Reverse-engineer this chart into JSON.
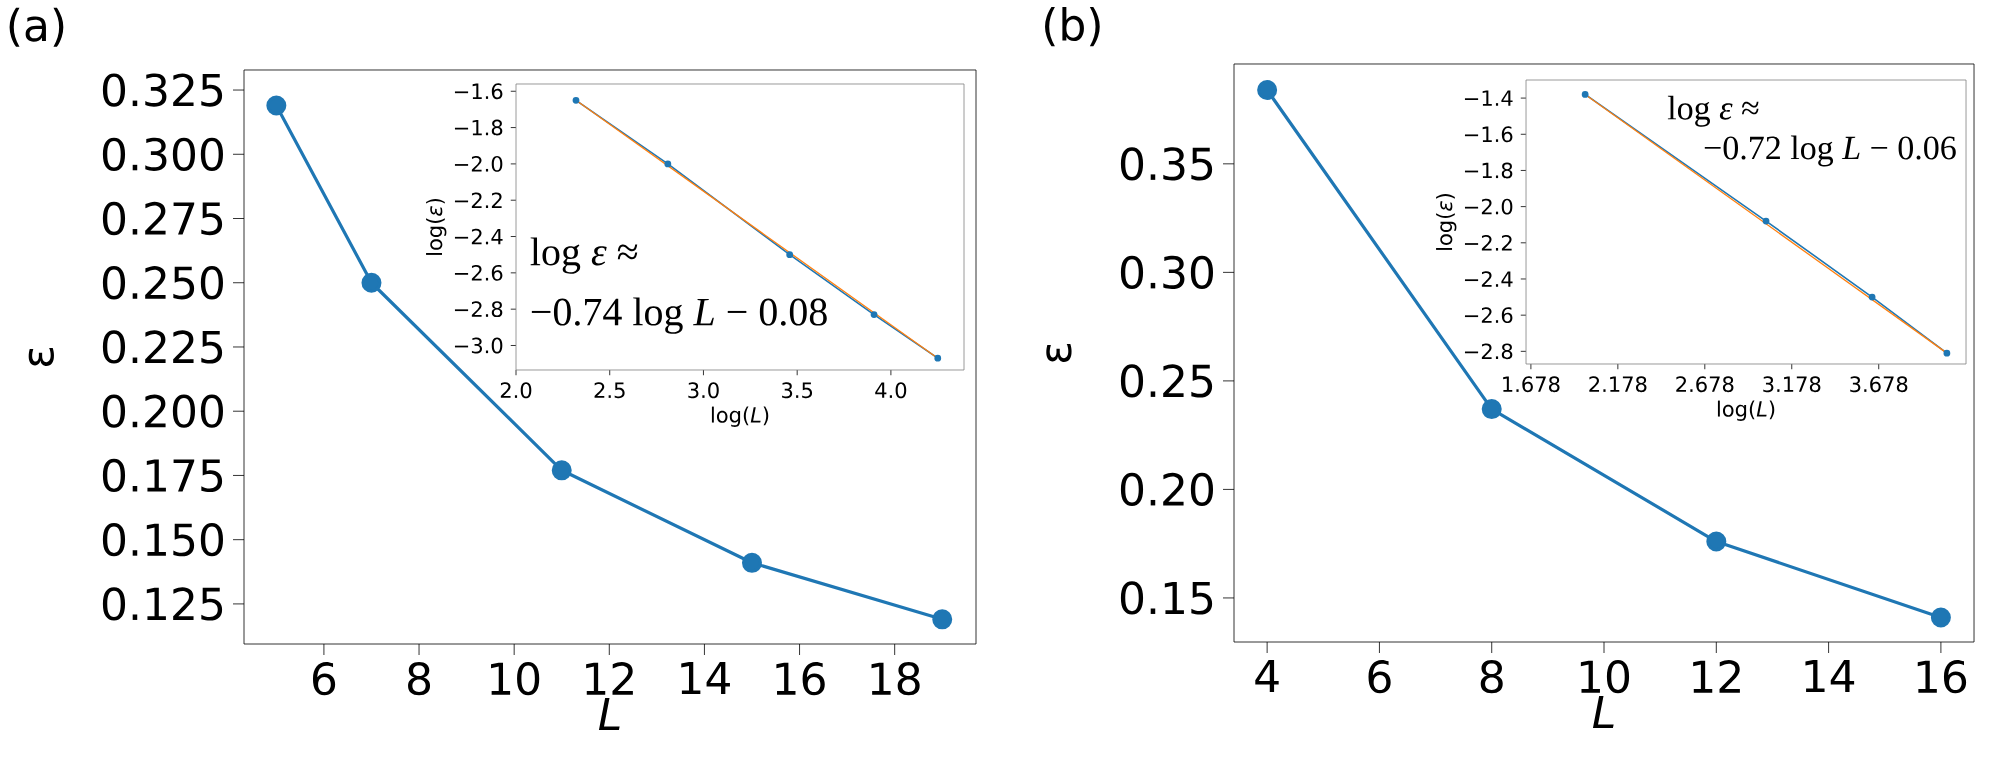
{
  "chart_data": [
    {
      "type": "line",
      "title": "(a)",
      "xlabel": "L",
      "ylabel": "ε",
      "x": [
        5,
        7,
        11,
        15,
        19
      ],
      "xlim": [
        4.32,
        19.71
      ],
      "ylim": [
        0.1094,
        0.3328
      ],
      "xticks": [
        6,
        8,
        10,
        12,
        14,
        16,
        18
      ],
      "yticks": [
        0.125,
        {
          "value": 0.15,
          "label": "0.150"
        },
        0.175,
        {
          "value": 0.2,
          "label": "0.200"
        },
        0.225,
        {
          "value": 0.25,
          "label": "0.250"
        },
        0.275,
        {
          "value": 0.3,
          "label": "0.300"
        },
        0.325
      ],
      "marker": "circle",
      "series": [
        {
          "color": "#1f77b4",
          "values": [
            0.319,
            0.25,
            0.177,
            0.141,
            0.119
          ]
        }
      ]
    },
    {
      "type": "line",
      "xlabel": "log(*L*)",
      "ylabel": "log(*ε*)",
      "xlim": [
        2.0,
        4.39
      ],
      "ylim": [
        -3.135,
        -1.56
      ],
      "xticks": [
        {
          "value": 2,
          "label": "2.0"
        },
        2.5,
        {
          "value": 3,
          "label": "3.0"
        },
        3.5,
        {
          "value": 4,
          "label": "4.0"
        }
      ],
      "yticks": [
        {
          "value": -3.0,
          "label": "−3.0"
        },
        {
          "value": -2.8,
          "label": "−2.8"
        },
        {
          "value": -2.6,
          "label": "−2.6"
        },
        {
          "value": -2.4,
          "label": "−2.4"
        },
        {
          "value": -2.2,
          "label": "−2.2"
        },
        {
          "value": -2.0,
          "label": "−2.0"
        },
        {
          "value": -1.8,
          "label": "−1.8"
        },
        {
          "value": -1.6,
          "label": "−1.6"
        }
      ],
      "marker": "circle",
      "annotations": [
        "log *ε* ≈",
        "−0.74 log *L* − 0.08"
      ],
      "series": [
        {
          "color": "#1f77b4",
          "x": [
            2.32,
            2.81,
            3.46,
            3.91,
            4.25
          ],
          "values": [
            -1.65,
            -2.0,
            -2.5,
            -2.83,
            -3.07
          ]
        },
        {
          "color": "#ff7f0e",
          "x": [
            2.32,
            4.25
          ],
          "values": [
            -1.65,
            -3.07
          ],
          "marker": "none"
        }
      ]
    },
    {
      "type": "line",
      "title": "(b)",
      "xlabel": "L",
      "ylabel": "ε",
      "x": [
        4,
        8,
        12,
        16
      ],
      "xlim": [
        3.41,
        16.59
      ],
      "ylim": [
        0.1297,
        0.396
      ],
      "xticks": [
        4,
        6,
        8,
        10,
        12,
        14,
        16
      ],
      "yticks": [
        0.15,
        {
          "value": 0.2,
          "label": "0.20"
        },
        0.25,
        {
          "value": 0.3,
          "label": "0.30"
        },
        0.35
      ],
      "marker": "circle",
      "series": [
        {
          "color": "#1f77b4",
          "values": [
            0.384,
            0.237,
            0.176,
            0.141
          ]
        }
      ]
    },
    {
      "type": "line",
      "xlabel": "log(*L*)",
      "ylabel": "log(*ε*)",
      "xlim": [
        1.65,
        4.18
      ],
      "ylim": [
        -2.87,
        -1.3
      ],
      "xticks": [
        1.678,
        2.178,
        2.678,
        3.178,
        3.678
      ],
      "yticks": [
        {
          "value": -2.8,
          "label": "−2.8"
        },
        {
          "value": -2.6,
          "label": "−2.6"
        },
        {
          "value": -2.4,
          "label": "−2.4"
        },
        {
          "value": -2.2,
          "label": "−2.2"
        },
        {
          "value": -2.0,
          "label": "−2.0"
        },
        {
          "value": -1.8,
          "label": "−1.8"
        },
        {
          "value": -1.6,
          "label": "−1.6"
        },
        {
          "value": -1.4,
          "label": "−1.4"
        }
      ],
      "marker": "circle",
      "annotations": [
        "log *ε* ≈",
        "−0.72 log *L* − 0.06"
      ],
      "series": [
        {
          "color": "#1f77b4",
          "x": [
            1.99,
            3.03,
            3.64,
            4.07
          ],
          "values": [
            -1.38,
            -2.08,
            -2.5,
            -2.81
          ]
        },
        {
          "color": "#ff7f0e",
          "x": [
            1.99,
            4.07
          ],
          "values": [
            -1.38,
            -2.81
          ],
          "marker": "none"
        }
      ]
    }
  ]
}
